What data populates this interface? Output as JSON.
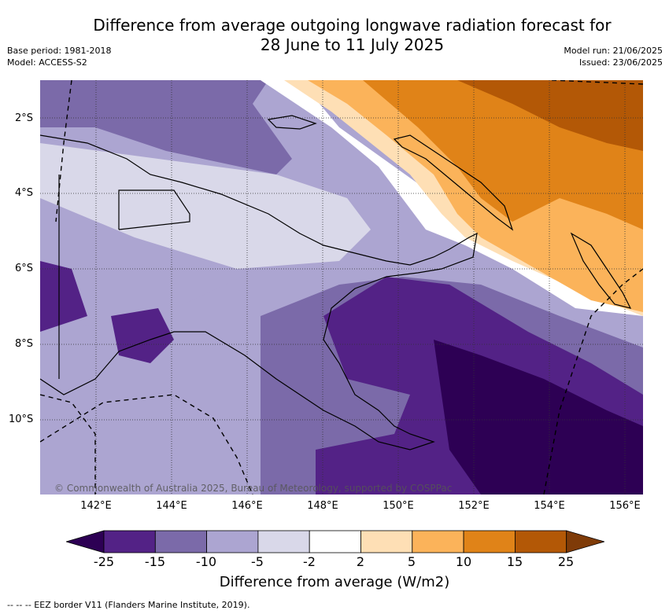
{
  "title_line1": "Difference from average outgoing longwave radiation forecast for",
  "title_line2": "28 June to 11 July 2025",
  "base_period": "Base period: 1981-2018",
  "model": "Model: ACCESS-S2",
  "model_run": "Model run: 21/06/2025",
  "issued": "Issued: 23/06/2025",
  "copyright": "© Commonwealth of Australia 2025, Bureau of Meteorology, supported by COSPPac",
  "lat_labels": [
    "2°S",
    "4°S",
    "6°S",
    "8°S",
    "10°S"
  ],
  "lon_labels": [
    "142°E",
    "144°E",
    "146°E",
    "148°E",
    "150°E",
    "152°E",
    "154°E",
    "156°E"
  ],
  "colorbar": {
    "label": "Difference from average (W/m2)",
    "ticks": [
      "-25",
      "-15",
      "-10",
      "-5",
      "-2",
      "2",
      "5",
      "10",
      "15",
      "25"
    ],
    "colors": [
      "#2d0054",
      "#532286",
      "#7b6aa9",
      "#aca5d1",
      "#d9d8e9",
      "#ffffff",
      "#fedfb5",
      "#fbb35a",
      "#e08318",
      "#b35806",
      "#7f3b08"
    ]
  },
  "footer": "--  --  -- EEZ border V11 (Flanders Marine Institute, 2019)."
}
